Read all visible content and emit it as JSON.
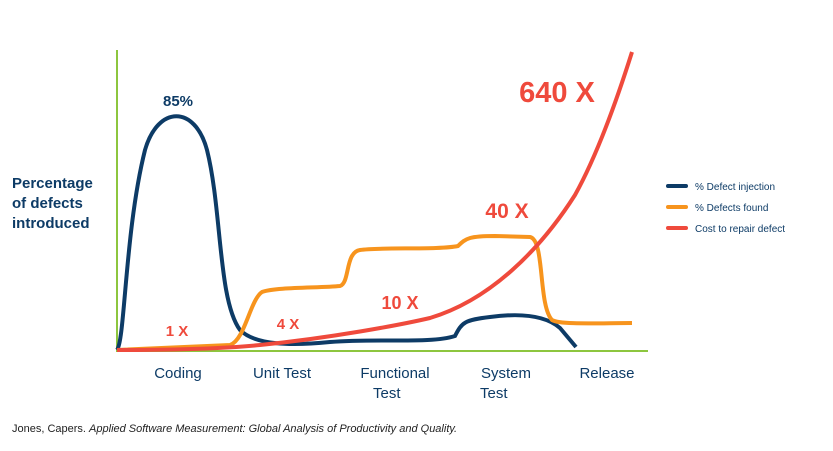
{
  "y_axis_label": [
    "Percentage",
    "of defects",
    "introduced"
  ],
  "stages": [
    [
      "Coding"
    ],
    [
      "Unit Test"
    ],
    [
      "Functional",
      "Test"
    ],
    [
      "System",
      "Test"
    ],
    [
      "Release"
    ]
  ],
  "annotations": {
    "peak": "85%",
    "cost_coding": "1 X",
    "cost_unit": "4 X",
    "cost_functional": "10 X",
    "cost_system": "40 X",
    "cost_release": "640 X"
  },
  "legend": [
    "% Defect injection",
    "% Defects found",
    "Cost to repair defect"
  ],
  "citation": {
    "author": "Jones, Capers.",
    "title": "Applied Software Measurement: Global Analysis of Productivity and Quality."
  }
}
